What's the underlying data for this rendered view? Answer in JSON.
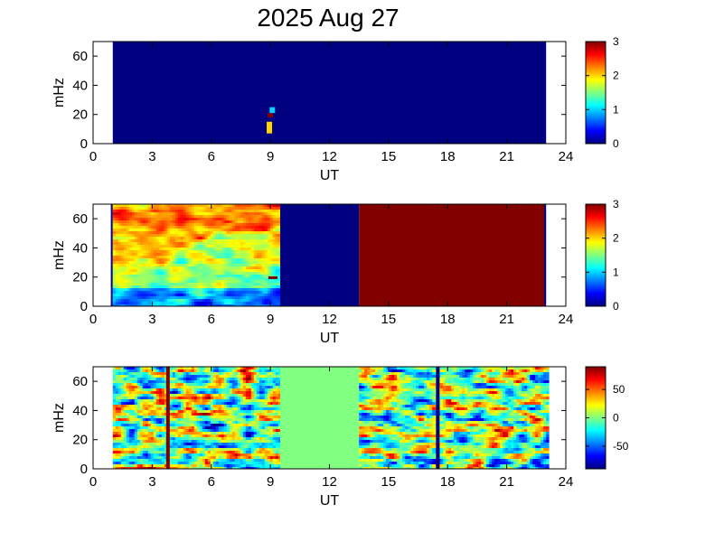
{
  "figure": {
    "title": "2025 Aug 27"
  },
  "chart_data": [
    {
      "type": "heatmap",
      "xlabel": "UT",
      "ylabel": "mHz",
      "xlim": [
        0,
        24
      ],
      "ylim": [
        0,
        70
      ],
      "xticks": [
        0,
        3,
        6,
        9,
        12,
        15,
        18,
        21,
        24
      ],
      "yticks": [
        0,
        20,
        40,
        60
      ],
      "colorbar": {
        "min": 0,
        "max": 3,
        "ticks": [
          0,
          1,
          2,
          3
        ]
      },
      "data_coverage_ut": [
        1.0,
        23.0
      ],
      "background_value": 0,
      "features": [
        {
          "ut": 9.0,
          "freq_range": [
            18,
            21
          ],
          "value": 3
        },
        {
          "ut": 9.1,
          "freq_range": [
            21,
            25
          ],
          "value": 1
        },
        {
          "ut": 8.95,
          "freq_range": [
            7,
            15
          ],
          "value": 2
        }
      ]
    },
    {
      "type": "heatmap",
      "xlabel": "UT",
      "ylabel": "mHz",
      "xlim": [
        0,
        24
      ],
      "ylim": [
        0,
        70
      ],
      "xticks": [
        0,
        3,
        6,
        9,
        12,
        15,
        18,
        21,
        24
      ],
      "yticks": [
        0,
        20,
        40,
        60
      ],
      "colorbar": {
        "min": 0,
        "max": 3,
        "ticks": [
          0,
          1,
          2,
          3
        ]
      },
      "segments": [
        {
          "ut_range": [
            0.9,
            1.0
          ],
          "value": 0
        },
        {
          "ut_range": [
            1.0,
            9.5
          ],
          "value": "variable 0.8-2.8"
        },
        {
          "ut_range": [
            9.5,
            13.5
          ],
          "value": 0
        },
        {
          "ut_range": [
            13.5,
            22.9
          ],
          "value": 3
        },
        {
          "ut_range": [
            22.9,
            23.0
          ],
          "value": 0
        }
      ]
    },
    {
      "type": "heatmap",
      "xlabel": "UT",
      "ylabel": "mHz",
      "xlim": [
        0,
        24
      ],
      "ylim": [
        0,
        70
      ],
      "xticks": [
        0,
        3,
        6,
        9,
        12,
        15,
        18,
        21,
        24
      ],
      "yticks": [
        0,
        20,
        40,
        60
      ],
      "colorbar": {
        "min": -90,
        "max": 90,
        "ticks": [
          50,
          0,
          -50
        ]
      },
      "segments": [
        {
          "ut_range": [
            1.0,
            9.5
          ],
          "value": "variable -90 to 90"
        },
        {
          "ut_range": [
            9.5,
            13.5
          ],
          "value": 0
        },
        {
          "ut_range": [
            13.5,
            23.0
          ],
          "value": "variable -90 to 90"
        }
      ],
      "vertical_lines": [
        {
          "ut": 3.8,
          "value": 90
        },
        {
          "ut": 17.5,
          "value": -90
        }
      ]
    }
  ]
}
